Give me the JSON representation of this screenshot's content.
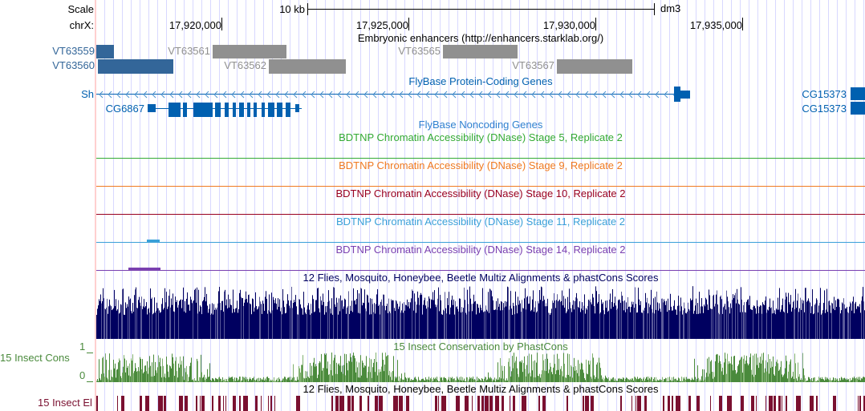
{
  "ruler": {
    "scale_label": "Scale",
    "scale_value": "10 kb",
    "assembly": "dm3",
    "chrom_label": "chrX:",
    "ticks": [
      "17,920,000",
      "17,925,000",
      "17,930,000",
      "17,935,000"
    ]
  },
  "enhancers": {
    "title": "Embryonic enhancers (http://enhancers.starklab.org/)",
    "items": [
      {
        "name": "VT63559",
        "color": "#336699"
      },
      {
        "name": "VT63560",
        "color": "#336699"
      },
      {
        "name": "VT63561",
        "color": "#909090"
      },
      {
        "name": "VT63562",
        "color": "#909090"
      },
      {
        "name": "VT63565",
        "color": "#909090"
      },
      {
        "name": "VT63567",
        "color": "#909090"
      }
    ]
  },
  "genes": {
    "title": "FlyBase Protein-Coding Genes",
    "color": "#0060b0",
    "items": [
      "Sh",
      "CG6867",
      "CG15373",
      "CG15373"
    ]
  },
  "noncoding": {
    "title": "FlyBase Noncoding Genes"
  },
  "dnase": [
    {
      "title": "BDTNP Chromatin Accessibility (DNase) Stage 5, Replicate 2",
      "color": "#33aa33"
    },
    {
      "title": "BDTNP Chromatin Accessibility (DNase) Stage 9, Replicate 2",
      "color": "#f07a20"
    },
    {
      "title": "BDTNP Chromatin Accessibility (DNase) Stage 10, Replicate 2",
      "color": "#990020"
    },
    {
      "title": "BDTNP Chromatin Accessibility (DNase) Stage 11, Replicate 2",
      "color": "#3aa0d8"
    },
    {
      "title": "BDTNP Chromatin Accessibility (DNase) Stage 14, Replicate 2",
      "color": "#7a40b0"
    }
  ],
  "multiz": {
    "title": "12 Flies, Mosquito, Honeybee, Beetle Multiz Alignments & phastCons Scores",
    "color": "#000060"
  },
  "cons": {
    "title": "15 Insect Conservation by PhastCons",
    "side_label": "15 Insect Cons",
    "max": "1",
    "min": "0",
    "color": "#4a8a3c"
  },
  "elements": {
    "title": "12 Flies, Mosquito, Honeybee, Beetle Multiz Alignments & phastCons Scores",
    "side_label": "15 Insect El",
    "color": "#7a1030"
  }
}
